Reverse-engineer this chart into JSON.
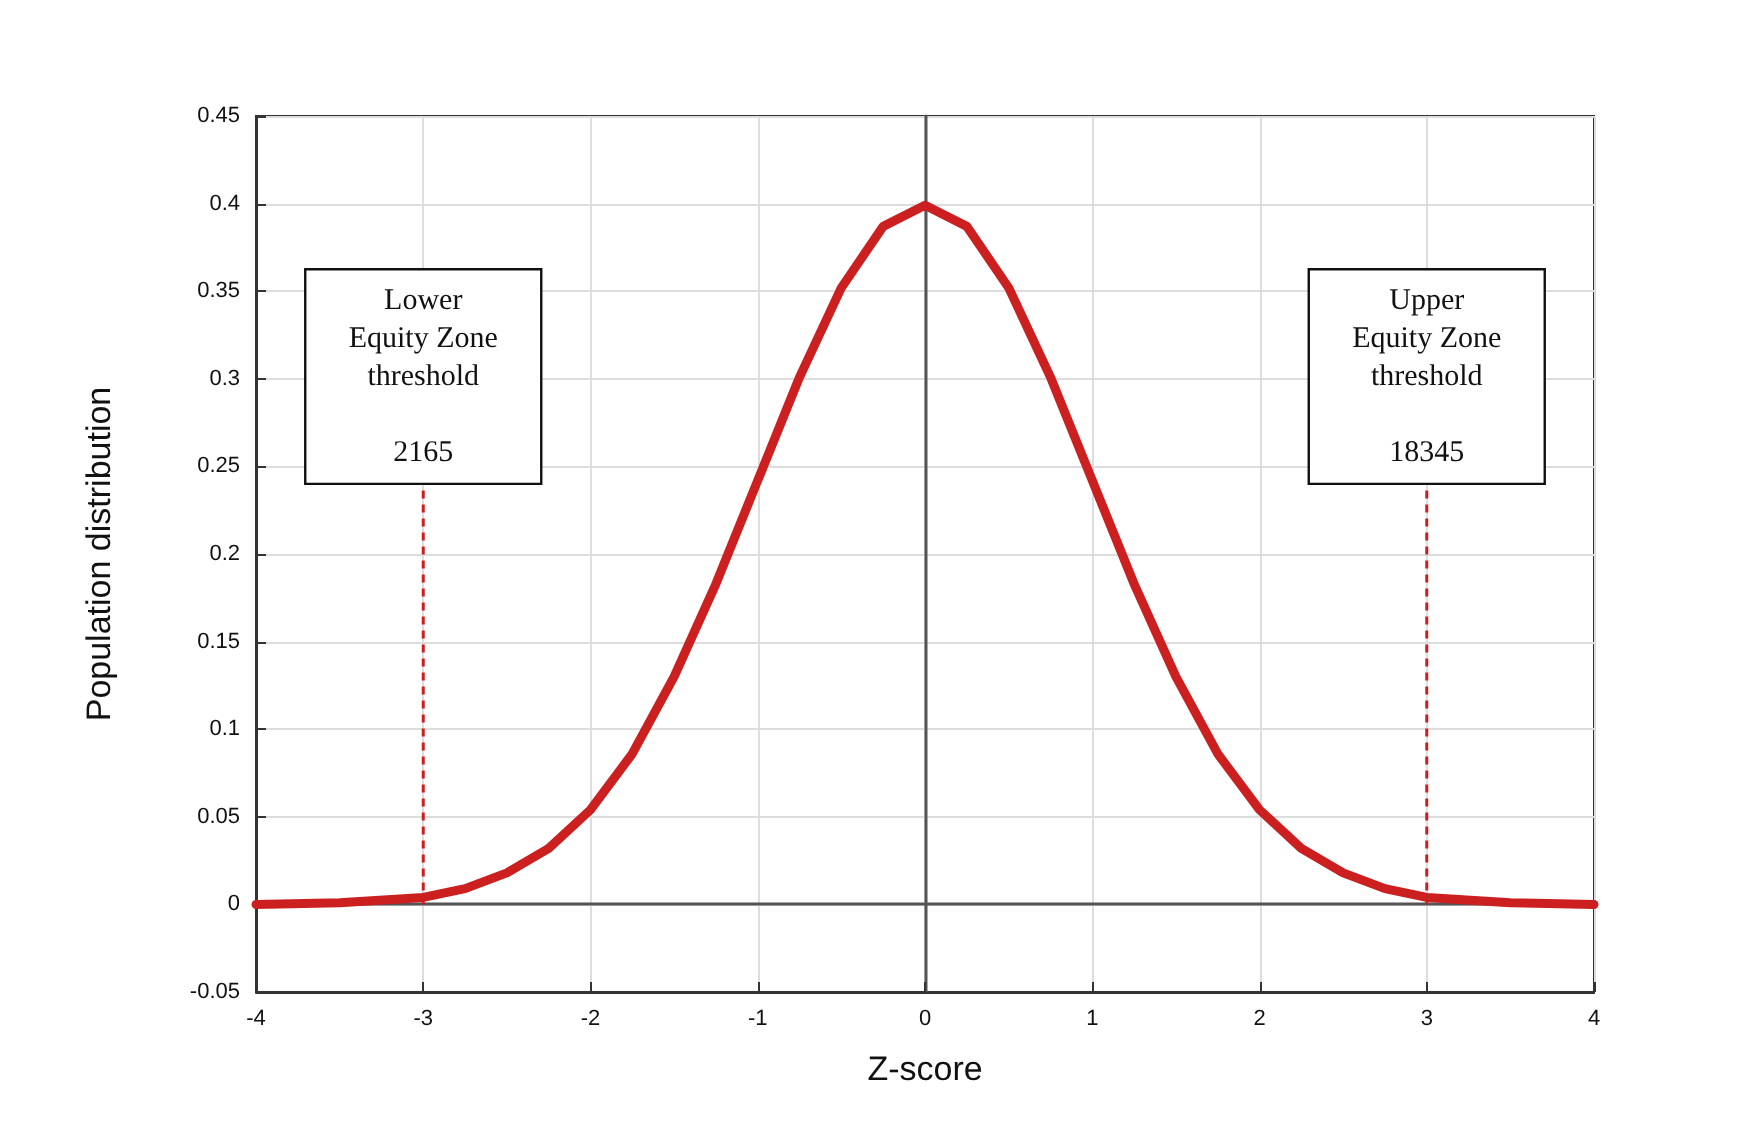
{
  "chart_data": {
    "type": "line",
    "xlabel": "Z-score",
    "ylabel": "Population distribution",
    "x": [
      -4,
      -3.5,
      -3,
      -2.75,
      -2.5,
      -2.25,
      -2,
      -1.75,
      -1.5,
      -1.25,
      -1,
      -0.75,
      -0.5,
      -0.25,
      0,
      0.25,
      0.5,
      0.75,
      1,
      1.25,
      1.5,
      1.75,
      2,
      2.25,
      2.5,
      2.75,
      3,
      3.5,
      4
    ],
    "series": [
      {
        "color": "#cc1f1f",
        "values": [
          0,
          0.001,
          0.004,
          0.009,
          0.018,
          0.032,
          0.054,
          0.086,
          0.13,
          0.183,
          0.242,
          0.301,
          0.352,
          0.387,
          0.399,
          0.387,
          0.352,
          0.301,
          0.242,
          0.183,
          0.13,
          0.086,
          0.054,
          0.032,
          0.018,
          0.009,
          0.004,
          0.001,
          0
        ]
      }
    ],
    "xlim": [
      -4,
      4
    ],
    "xticks": [
      -4,
      -3,
      -2,
      -1,
      0,
      1,
      2,
      3,
      4
    ],
    "ylim": [
      -0.05,
      0.45
    ],
    "yticks": [
      -0.05,
      0,
      0.05,
      0.1,
      0.15,
      0.2,
      0.25,
      0.3,
      0.35,
      0.4,
      0.45
    ],
    "grid": true,
    "marker": "none",
    "line_style": "solid",
    "ref_lines": [
      {
        "axis": "x",
        "value": -3,
        "label": "Lower\nEquity Zone\nthreshold\n\n2165",
        "color": "#cc1f1f",
        "line_style": "dashed"
      },
      {
        "axis": "x",
        "value": 3,
        "label": "Upper\nEquity Zone\nthreshold\n\n18345",
        "color": "#cc1f1f",
        "line_style": "dashed"
      }
    ]
  }
}
